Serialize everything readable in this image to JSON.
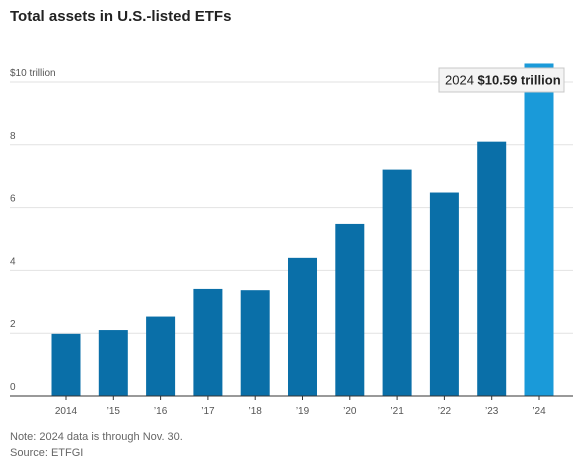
{
  "title": "Total assets in U.S.-listed ETFs",
  "note": "Note: 2024 data is through Nov. 30.",
  "source": "Source: ETFGI",
  "colors": {
    "bar": "#0a6fa8",
    "highlight": "#1a9ad9",
    "grid": "#e2e2e2",
    "axis": "#333333",
    "label": "#555555"
  },
  "chart_data": {
    "type": "bar",
    "title": "Total assets in U.S.-listed ETFs",
    "xlabel": "",
    "ylabel": "",
    "categories": [
      "2014",
      "’15",
      "’16",
      "’17",
      "’18",
      "’19",
      "’20",
      "’21",
      "’22",
      "’23",
      "’24"
    ],
    "values": [
      1.98,
      2.1,
      2.53,
      3.41,
      3.37,
      4.4,
      5.48,
      7.21,
      6.48,
      8.1,
      10.59
    ],
    "ylim": [
      0,
      10
    ],
    "yticks": [
      0,
      2,
      4,
      6,
      8,
      10
    ],
    "ytick_labels": [
      "0",
      "2",
      "4",
      "6",
      "8",
      "$10 trillion"
    ],
    "grid": true,
    "highlight_index": 10,
    "annotation": {
      "year": "2024",
      "value": "$10.59 trillion"
    }
  }
}
